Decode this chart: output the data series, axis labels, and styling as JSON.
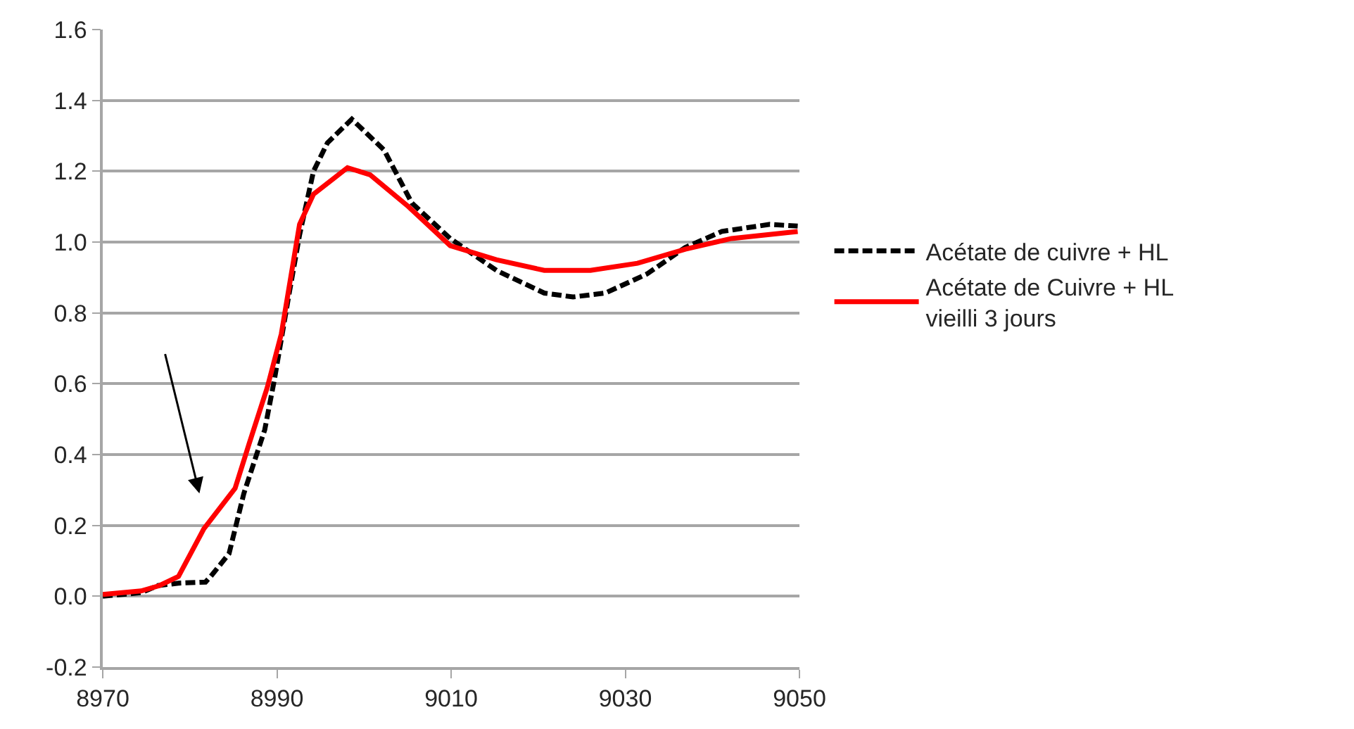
{
  "chart_data": {
    "type": "line",
    "series": [
      {
        "name": "Acétate de cuivre + HL",
        "color": "#000000",
        "line_style": "dashed",
        "x": [
          8970,
          8974.4,
          8976.3,
          8978.7,
          8981.8,
          8982.4,
          8984.5,
          8986.2,
          8988.6,
          8989.7,
          8991.3,
          8992.6,
          8994.2,
          8995.8,
          8998.6,
          9002.3,
          9005.5,
          9009.9,
          9015.2,
          9020.7,
          9024,
          9027.7,
          9032.5,
          9036.9,
          9041.1,
          9046.6,
          9049.8
        ],
        "values": [
          0.0,
          0.01,
          0.03,
          0.037,
          0.04,
          0.056,
          0.12,
          0.29,
          0.47,
          0.61,
          0.84,
          1.02,
          1.2,
          1.28,
          1.347,
          1.26,
          1.11,
          1.01,
          0.92,
          0.856,
          0.845,
          0.856,
          0.91,
          0.985,
          1.03,
          1.05,
          1.045
        ]
      },
      {
        "name": "Acétate de Cuivre + HL\nvieilli 3 jours",
        "color": "#ff0000",
        "line_style": "solid",
        "x": [
          8970,
          8974.4,
          8976.5,
          8978.7,
          8981.6,
          8985.2,
          8986.8,
          8988.9,
          8990.5,
          8992.6,
          8994.2,
          8998.1,
          9000.7,
          9005.1,
          9009.9,
          9015.2,
          9020.7,
          9026,
          9031.4,
          9036.9,
          9042.2,
          9049.8
        ],
        "values": [
          0.005,
          0.015,
          0.03,
          0.056,
          0.19,
          0.305,
          0.43,
          0.59,
          0.74,
          1.05,
          1.135,
          1.21,
          1.19,
          1.1,
          0.99,
          0.95,
          0.92,
          0.92,
          0.94,
          0.98,
          1.01,
          1.03
        ]
      }
    ],
    "xlim": [
      8970,
      9050
    ],
    "xticks": [
      8970,
      8990,
      9010,
      9030,
      9050
    ],
    "ylim": [
      -0.2,
      1.6
    ],
    "yticks": [
      {
        "value": -0.2,
        "label": "-0.2"
      },
      {
        "value": 0,
        "label": "0.0"
      },
      {
        "value": 0.2,
        "label": "0.2"
      },
      {
        "value": 0.4,
        "label": "0.4"
      },
      {
        "value": 0.6,
        "label": "0.6"
      },
      {
        "value": 0.8,
        "label": "0.8"
      },
      {
        "value": 1.0,
        "label": "1.0"
      },
      {
        "value": 1.2,
        "label": "1.2"
      },
      {
        "value": 1.4,
        "label": "1.4"
      },
      {
        "value": 1.6,
        "label": "1.6"
      }
    ],
    "grid": "y",
    "legend": "right",
    "marker": "none"
  }
}
